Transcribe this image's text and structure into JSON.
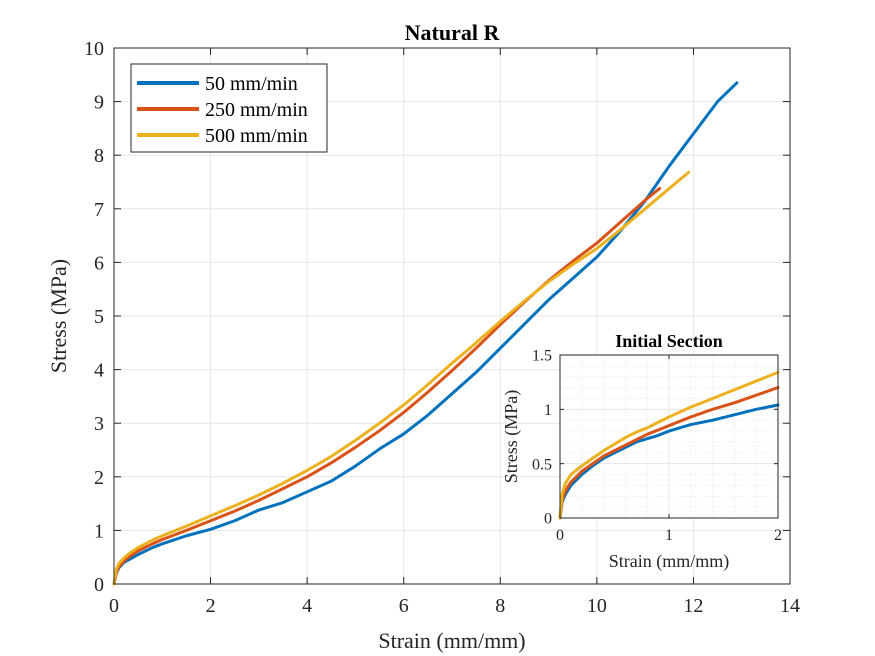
{
  "chart_data": [
    {
      "type": "line",
      "title": "Natural R",
      "xlabel": "Strain (mm/mm)",
      "ylabel": "Stress (MPa)",
      "xlim": [
        0,
        14
      ],
      "ylim": [
        0,
        10
      ],
      "xticks": [
        0,
        2,
        4,
        6,
        8,
        10,
        12,
        14
      ],
      "yticks": [
        0,
        1,
        2,
        3,
        4,
        5,
        6,
        7,
        8,
        9,
        10
      ],
      "grid": true,
      "legend_position": "top-left",
      "series": [
        {
          "name": "50 mm/min",
          "color": "#0072BD",
          "x": [
            0,
            0.05,
            0.1,
            0.2,
            0.3,
            0.5,
            0.8,
            1.0,
            1.5,
            2.0,
            2.5,
            3.0,
            3.5,
            4.0,
            4.5,
            5.0,
            5.5,
            6.0,
            6.5,
            7.0,
            7.5,
            8.0,
            8.5,
            9.0,
            9.5,
            10.0,
            10.5,
            11.0,
            11.5,
            12.0,
            12.5,
            12.9
          ],
          "y": [
            0,
            0.2,
            0.3,
            0.4,
            0.45,
            0.55,
            0.68,
            0.75,
            0.9,
            1.02,
            1.18,
            1.38,
            1.52,
            1.72,
            1.92,
            2.2,
            2.52,
            2.8,
            3.15,
            3.55,
            3.95,
            4.4,
            4.85,
            5.3,
            5.7,
            6.1,
            6.6,
            7.15,
            7.8,
            8.4,
            9.0,
            9.35
          ]
        },
        {
          "name": "250 mm/min",
          "color": "#D95319",
          "x": [
            0,
            0.05,
            0.1,
            0.2,
            0.3,
            0.5,
            0.8,
            1.0,
            1.5,
            2.0,
            2.5,
            3.0,
            3.5,
            4.0,
            4.5,
            5.0,
            5.5,
            6.0,
            6.5,
            7.0,
            7.5,
            8.0,
            8.5,
            9.0,
            9.5,
            10.0,
            10.5,
            11.0,
            11.3
          ],
          "y": [
            0,
            0.22,
            0.32,
            0.42,
            0.5,
            0.62,
            0.75,
            0.83,
            1.0,
            1.18,
            1.36,
            1.56,
            1.78,
            2.0,
            2.26,
            2.55,
            2.86,
            3.2,
            3.58,
            3.98,
            4.4,
            4.84,
            5.26,
            5.66,
            6.02,
            6.36,
            6.76,
            7.16,
            7.38
          ]
        },
        {
          "name": "500 mm/min",
          "color": "#EDB120",
          "x": [
            0,
            0.05,
            0.1,
            0.2,
            0.3,
            0.5,
            0.8,
            1.0,
            1.5,
            2.0,
            2.5,
            3.0,
            3.5,
            4.0,
            4.5,
            5.0,
            5.5,
            6.0,
            6.5,
            7.0,
            7.5,
            8.0,
            8.5,
            9.0,
            9.5,
            10.0,
            10.5,
            11.0,
            11.5,
            11.9
          ],
          "y": [
            0,
            0.28,
            0.38,
            0.48,
            0.56,
            0.68,
            0.82,
            0.9,
            1.08,
            1.27,
            1.46,
            1.66,
            1.88,
            2.12,
            2.38,
            2.68,
            3.0,
            3.34,
            3.72,
            4.12,
            4.5,
            4.9,
            5.28,
            5.64,
            5.96,
            6.26,
            6.62,
            7.0,
            7.38,
            7.68
          ]
        }
      ]
    },
    {
      "type": "line",
      "title": "Initial Section",
      "xlabel": "Strain (mm/mm)",
      "ylabel": "Stress (MPa)",
      "xlim": [
        0,
        2
      ],
      "ylim": [
        0,
        1.5
      ],
      "xticks": [
        0,
        1,
        2
      ],
      "yticks": [
        0,
        0.5,
        1,
        1.5
      ],
      "grid": "minor dotted",
      "series": [
        {
          "color": "#0072BD",
          "x": [
            0,
            0.02,
            0.05,
            0.1,
            0.2,
            0.3,
            0.4,
            0.5,
            0.6,
            0.7,
            0.8,
            0.9,
            1.0,
            1.2,
            1.4,
            1.6,
            1.8,
            2.0
          ],
          "y": [
            0,
            0.15,
            0.22,
            0.3,
            0.4,
            0.48,
            0.55,
            0.6,
            0.65,
            0.7,
            0.73,
            0.76,
            0.8,
            0.86,
            0.9,
            0.95,
            1.0,
            1.04
          ]
        },
        {
          "color": "#D95319",
          "x": [
            0,
            0.02,
            0.05,
            0.1,
            0.2,
            0.3,
            0.4,
            0.5,
            0.6,
            0.7,
            0.8,
            0.9,
            1.0,
            1.2,
            1.4,
            1.6,
            1.8,
            2.0
          ],
          "y": [
            0,
            0.17,
            0.25,
            0.33,
            0.43,
            0.5,
            0.57,
            0.62,
            0.67,
            0.72,
            0.77,
            0.81,
            0.85,
            0.93,
            1.0,
            1.06,
            1.13,
            1.2
          ]
        },
        {
          "color": "#EDB120",
          "x": [
            0,
            0.02,
            0.05,
            0.1,
            0.2,
            0.3,
            0.4,
            0.5,
            0.6,
            0.7,
            0.8,
            0.9,
            1.0,
            1.2,
            1.4,
            1.6,
            1.8,
            2.0
          ],
          "y": [
            0,
            0.22,
            0.32,
            0.4,
            0.48,
            0.55,
            0.62,
            0.68,
            0.74,
            0.79,
            0.83,
            0.88,
            0.93,
            1.02,
            1.1,
            1.18,
            1.26,
            1.34
          ]
        }
      ]
    }
  ]
}
